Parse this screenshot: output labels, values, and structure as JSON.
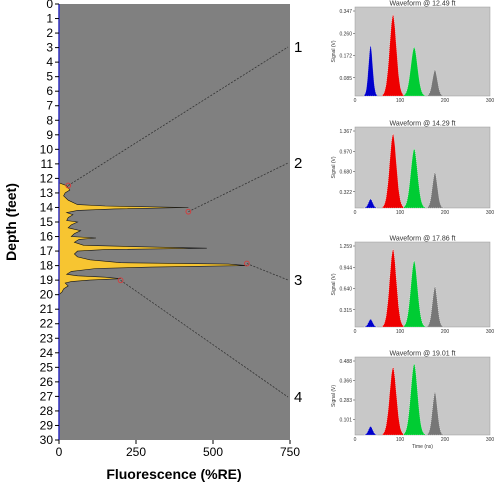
{
  "chart_data": [
    {
      "type": "area",
      "xlabel": "Fluorescence (%RE)",
      "ylabel": "Depth (feet)",
      "xlim": [
        0,
        750
      ],
      "ylim": [
        0,
        30
      ],
      "y_inverted": true,
      "x_ticks": [
        "0",
        "250",
        "500",
        "750"
      ],
      "y_ticks": [
        "0",
        "1",
        "2",
        "3",
        "4",
        "5",
        "6",
        "7",
        "8",
        "9",
        "10",
        "11",
        "12",
        "13",
        "14",
        "15",
        "16",
        "17",
        "18",
        "19",
        "20",
        "21",
        "22",
        "23",
        "24",
        "25",
        "26",
        "27",
        "28",
        "29",
        "30"
      ],
      "background_color": "#808080",
      "fill_color": "#F7C531",
      "profile": {
        "depth": [
          12.3,
          12.5,
          12.8,
          13.0,
          13.2,
          13.5,
          13.8,
          13.9,
          14.0,
          14.1,
          14.2,
          14.35,
          14.5,
          14.7,
          14.9,
          15.0,
          15.2,
          15.4,
          15.6,
          15.8,
          16.0,
          16.1,
          16.2,
          16.4,
          16.6,
          16.7,
          16.8,
          16.9,
          17.0,
          17.2,
          17.4,
          17.6,
          17.8,
          17.9,
          18.0,
          18.1,
          18.2,
          18.4,
          18.6,
          18.7,
          18.8,
          18.9,
          19.0,
          19.1,
          19.2,
          19.4,
          19.6,
          19.8,
          20.0
        ],
        "value": [
          0,
          25,
          35,
          20,
          15,
          30,
          60,
          150,
          420,
          180,
          60,
          25,
          45,
          30,
          25,
          60,
          40,
          30,
          70,
          50,
          40,
          120,
          65,
          50,
          80,
          250,
          480,
          150,
          60,
          50,
          60,
          100,
          200,
          550,
          610,
          300,
          120,
          40,
          25,
          60,
          150,
          200,
          100,
          40,
          20,
          30,
          15,
          10,
          0
        ]
      },
      "annotations": [
        {
          "label": "1",
          "depth": 12.49,
          "value": 30
        },
        {
          "label": "2",
          "depth": 14.29,
          "value": 420
        },
        {
          "label": "3",
          "depth": 17.86,
          "value": 610
        },
        {
          "label": "4",
          "depth": 19.01,
          "value": 200
        }
      ]
    },
    {
      "type": "area",
      "title": "Waveform @ 12.49 ft",
      "ylabel": "Signal (V)",
      "xlim": [
        0,
        300
      ],
      "x_ticks": [
        "0",
        "100",
        "200",
        "300"
      ],
      "y_ticks": [
        "0.347",
        "0.260",
        "0.172",
        "0.085"
      ],
      "ymax": 0.347
    },
    {
      "type": "area",
      "title": "Waveform @ 14.29 ft",
      "ylabel": "Signal (V)",
      "xlim": [
        0,
        300
      ],
      "x_ticks": [
        "0",
        "100",
        "200",
        "300"
      ],
      "y_ticks": [
        "1.367",
        "0.970",
        "0.680",
        "0.322"
      ],
      "ymax": 1.367
    },
    {
      "type": "area",
      "title": "Waveform @ 17.86 ft",
      "ylabel": "Signal (V)",
      "xlim": [
        0,
        300
      ],
      "x_ticks": [
        "0",
        "100",
        "200",
        "300"
      ],
      "y_ticks": [
        "1.259",
        "0.944",
        "0.640",
        "0.315"
      ],
      "ymax": 1.259
    },
    {
      "type": "area",
      "title": "Waveform @ 19.01 ft",
      "ylabel": "Signal (V)",
      "xlabel": "Time (ns)",
      "xlim": [
        0,
        300
      ],
      "x_ticks": [
        "0",
        "100",
        "200",
        "300"
      ],
      "y_ticks": [
        "0.488",
        "0.366",
        "0.283",
        "0.101"
      ],
      "ymax": 0.488
    }
  ],
  "waveform_shape": {
    "peaks": [
      {
        "name": "blue",
        "color": "#0000CC",
        "center": 35,
        "width": 5
      },
      {
        "name": "red",
        "color": "#EE0000",
        "center": 85,
        "width": 8
      },
      {
        "name": "green",
        "color": "#00CC33",
        "center": 132,
        "width": 8
      },
      {
        "name": "gray",
        "color": "#777777",
        "center": 178,
        "width": 6
      }
    ],
    "relative_heights": [
      [
        0.62,
        1.0,
        0.6,
        0.32
      ],
      [
        0.12,
        1.0,
        0.8,
        0.48
      ],
      [
        0.1,
        1.0,
        0.85,
        0.52
      ],
      [
        0.12,
        0.95,
        1.0,
        0.6
      ]
    ]
  },
  "colors": {
    "plot_background": "#808080",
    "waveform_background": "#C8C8C8",
    "profile_fill": "#F7C531",
    "marker": "#D04040",
    "callout_line": "#333333"
  }
}
